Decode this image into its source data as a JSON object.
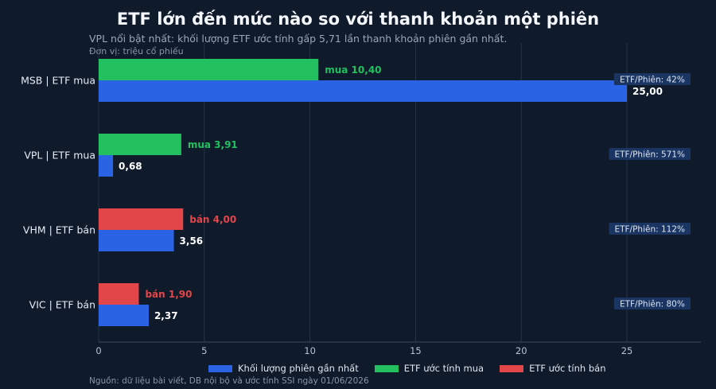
{
  "title": "ETF lớn đến mức nào so với thanh khoản một phiên",
  "subtitle": "VPL nổi bật nhất: khối lượng ETF ước tính gấp 5,71 lần thanh khoản phiên gần nhất.",
  "unit_note": "Đơn vị: triệu cổ phiếu",
  "source": "Nguồn: dữ liệu bài viết, DB nội bộ và ước tính SSI ngày 01/06/2026",
  "colors": {
    "background": "#0f1a2b",
    "liquidity": "#2a63e4",
    "etf_buy": "#22c05e",
    "etf_sell": "#e24648",
    "ratio_badge_bg": "#1b3563",
    "grid": "#26344a"
  },
  "chart_data": {
    "type": "bar",
    "orientation": "horizontal",
    "categories": [
      "MSB | ETF mua",
      "VPL | ETF mua",
      "VHM | ETF bán",
      "VIC | ETF bán"
    ],
    "series": [
      {
        "name": "Khối lượng phiên gần nhất",
        "values": [
          25.0,
          0.68,
          3.56,
          2.37
        ],
        "labels": [
          "25,00",
          "0,68",
          "3,56",
          "2,37"
        ]
      },
      {
        "name": "ETF ước tính",
        "values": [
          10.4,
          3.91,
          4.0,
          1.9
        ],
        "sides": [
          "mua",
          "mua",
          "bán",
          "bán"
        ],
        "labels": [
          "mua 10,40",
          "mua 3,91",
          "bán 4,00",
          "bán 1,90"
        ]
      }
    ],
    "ratio_labels": [
      "ETF/Phiên: 42%",
      "ETF/Phiên: 571%",
      "ETF/Phiên: 112%",
      "ETF/Phiên: 80%"
    ],
    "x_ticks": [
      0,
      5,
      10,
      15,
      20,
      25
    ],
    "xlim": [
      0,
      28.5
    ],
    "grid": true,
    "legend": {
      "position": "bottom",
      "entries": [
        "Khối lượng phiên gần nhất",
        "ETF ước tính mua",
        "ETF ước tính bán"
      ]
    }
  }
}
